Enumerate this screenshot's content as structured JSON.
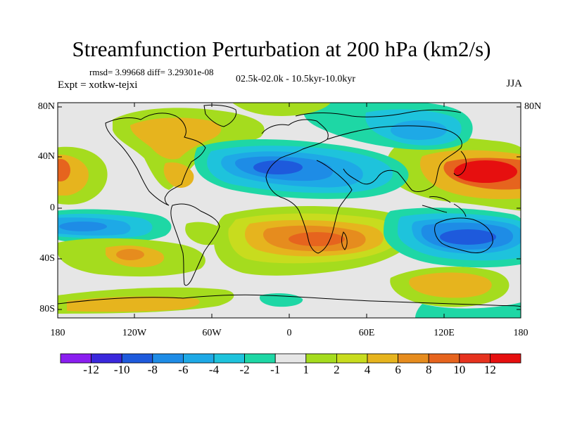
{
  "title": "Streamfunction Perturbation at 200 hPa (km2/s)",
  "stats": "rmsd= 3.99668 diff= 3.29301e-08",
  "experiment": "Expt = xotkw-tejxi",
  "time_span": "02.5k-02.0k - 10.5kyr-10.0kyr",
  "season": "JJA",
  "lat_labels": [
    "80N",
    "40N",
    "0",
    "40S",
    "80S"
  ],
  "lon_labels": [
    "180",
    "120W",
    "60W",
    "0",
    "60E",
    "120E",
    "180"
  ],
  "colorbar": {
    "labels": [
      "-12",
      "-10",
      "-8",
      "-6",
      "-4",
      "-2",
      "-1",
      "1",
      "2",
      "4",
      "6",
      "8",
      "10",
      "12"
    ],
    "colors": [
      "#8a1ef0",
      "#3a28dc",
      "#1e5adc",
      "#1e8ce6",
      "#1ea9e6",
      "#1ec3dc",
      "#1ed7a5",
      "#e6e6e6",
      "#a5dc1e",
      "#c8dc1e",
      "#e6b41e",
      "#e68c1e",
      "#e6641e",
      "#e6321e",
      "#e60f0f"
    ]
  },
  "fields": [
    {
      "name": "west-pacific-n-positive",
      "lon": 155,
      "lat": 30,
      "level": 12
    },
    {
      "name": "arabia-negative",
      "lon": -5,
      "lat": 32,
      "level": -8
    },
    {
      "name": "indian-ocean-s-negative",
      "lon": 120,
      "lat": -25,
      "level": -10
    },
    {
      "name": "south-atlantic-positive",
      "lon": 15,
      "lat": -25,
      "level": 8
    },
    {
      "name": "east-pacific-s-negative",
      "lon": -160,
      "lat": -15,
      "level": -8
    },
    {
      "name": "east-pacific-n-positive",
      "lon": -170,
      "lat": 30,
      "level": 6
    },
    {
      "name": "north-america-positive",
      "lon": -80,
      "lat": 45,
      "level": 6
    },
    {
      "name": "south-pacific-positive",
      "lon": -130,
      "lat": -35,
      "level": 4
    },
    {
      "name": "southern-ocean-positive",
      "lon": 120,
      "lat": -60,
      "level": 4
    }
  ]
}
